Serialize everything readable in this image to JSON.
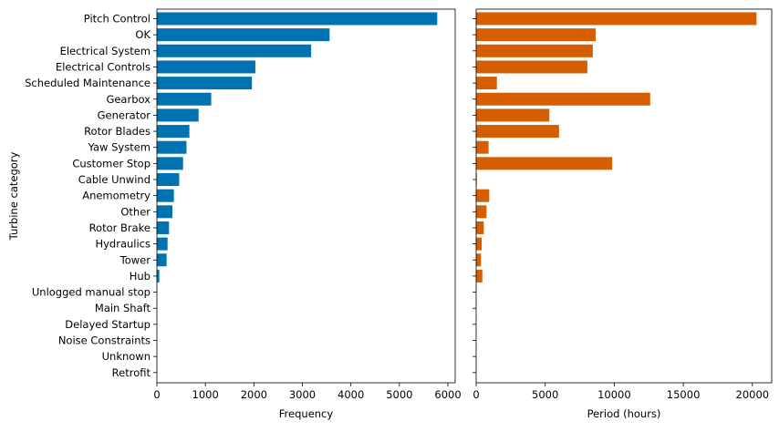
{
  "chart_data": {
    "type": "bar",
    "orientation": "horizontal",
    "shared_y": true,
    "ylabel": "Turbine category",
    "categories": [
      "Pitch Control",
      "OK",
      "Electrical System",
      "Electrical Controls",
      "Scheduled Maintenance",
      "Gearbox",
      "Generator",
      "Rotor Blades",
      "Yaw System",
      "Customer Stop",
      "Cable Unwind",
      "Anemometry",
      "Other",
      "Rotor Brake",
      "Hydraulics",
      "Tower",
      "Hub",
      "Unlogged manual stop",
      "Main Shaft",
      "Delayed Startup",
      "Noise Constraints",
      "Unknown",
      "Retrofit"
    ],
    "panels": [
      {
        "xlabel": "Frequency",
        "xlim": [
          0,
          6150
        ],
        "xticks": [
          0,
          1000,
          2000,
          3000,
          4000,
          5000,
          6000
        ],
        "color": "#0072B2",
        "values": [
          5780,
          3560,
          3180,
          2030,
          1960,
          1120,
          860,
          670,
          610,
          540,
          460,
          350,
          320,
          250,
          220,
          200,
          50,
          0,
          0,
          0,
          0,
          0,
          0
        ]
      },
      {
        "xlabel": "Period (hours)",
        "xlim": [
          0,
          21400
        ],
        "xticks": [
          0,
          5000,
          10000,
          15000,
          20000
        ],
        "color": "#D55E00",
        "values": [
          20300,
          8650,
          8450,
          8050,
          1500,
          12600,
          5300,
          6000,
          900,
          9850,
          50,
          950,
          750,
          550,
          400,
          350,
          450,
          0,
          0,
          0,
          0,
          0,
          0
        ]
      }
    ]
  }
}
